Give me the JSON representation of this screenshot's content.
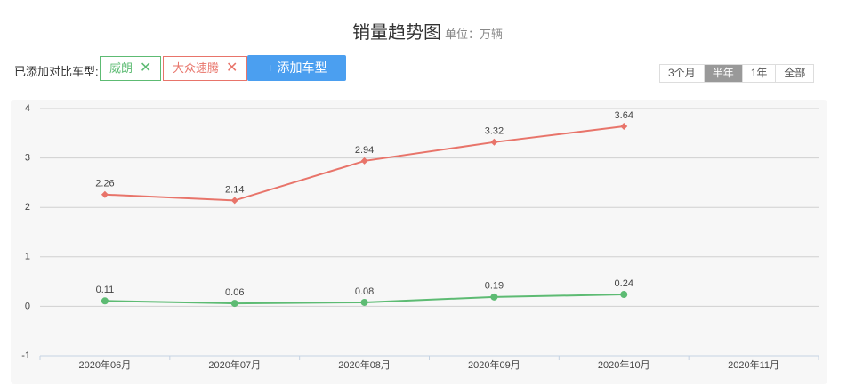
{
  "header": {
    "title": "销量趋势图",
    "subtitle": "单位：万辆"
  },
  "compare_label": "已添加对比车型:",
  "add_button": "+ 添加车型",
  "ranges": {
    "options": [
      "3个月",
      "半年",
      "1年",
      "全部"
    ],
    "active": 1
  },
  "chart_data": {
    "type": "line",
    "categories": [
      "2020年06月",
      "2020年07月",
      "2020年08月",
      "2020年09月",
      "2020年10月",
      "2020年11月"
    ],
    "series": [
      {
        "name": "威朗",
        "color": "#5dbb73",
        "marker": "circle",
        "values": [
          0.11,
          0.06,
          0.08,
          0.19,
          0.24,
          null
        ]
      },
      {
        "name": "大众速腾",
        "color": "#e8746a",
        "marker": "diamond",
        "values": [
          2.26,
          2.14,
          2.94,
          3.32,
          3.64,
          null
        ]
      }
    ],
    "ylim": [
      -1,
      4
    ],
    "yticks": [
      -1,
      0,
      1,
      2,
      3,
      4
    ],
    "grid": true
  }
}
